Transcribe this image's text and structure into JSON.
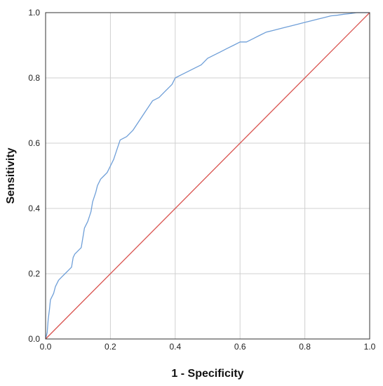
{
  "chart_data": {
    "type": "line",
    "xlabel": "1 - Specificity",
    "ylabel": "Sensitivity",
    "xlim": [
      0.0,
      1.0
    ],
    "ylim": [
      0.0,
      1.0
    ],
    "x_ticks": [
      "0.0",
      "0.2",
      "0.4",
      "0.6",
      "0.8",
      "1.0"
    ],
    "y_ticks": [
      "0.0",
      "0.2",
      "0.4",
      "0.6",
      "0.8",
      "1.0"
    ],
    "grid": true,
    "series": [
      {
        "color": "#6f9fd8",
        "points": [
          [
            0.0,
            0.0
          ],
          [
            0.005,
            0.02
          ],
          [
            0.008,
            0.06
          ],
          [
            0.012,
            0.09
          ],
          [
            0.015,
            0.12
          ],
          [
            0.025,
            0.14
          ],
          [
            0.03,
            0.16
          ],
          [
            0.04,
            0.18
          ],
          [
            0.05,
            0.19
          ],
          [
            0.06,
            0.2
          ],
          [
            0.07,
            0.21
          ],
          [
            0.08,
            0.22
          ],
          [
            0.085,
            0.25
          ],
          [
            0.09,
            0.26
          ],
          [
            0.1,
            0.27
          ],
          [
            0.11,
            0.28
          ],
          [
            0.115,
            0.31
          ],
          [
            0.12,
            0.34
          ],
          [
            0.13,
            0.36
          ],
          [
            0.14,
            0.39
          ],
          [
            0.145,
            0.42
          ],
          [
            0.155,
            0.45
          ],
          [
            0.16,
            0.47
          ],
          [
            0.17,
            0.49
          ],
          [
            0.18,
            0.5
          ],
          [
            0.19,
            0.51
          ],
          [
            0.2,
            0.53
          ],
          [
            0.21,
            0.55
          ],
          [
            0.22,
            0.58
          ],
          [
            0.23,
            0.61
          ],
          [
            0.25,
            0.62
          ],
          [
            0.27,
            0.64
          ],
          [
            0.29,
            0.67
          ],
          [
            0.31,
            0.7
          ],
          [
            0.33,
            0.73
          ],
          [
            0.35,
            0.74
          ],
          [
            0.37,
            0.76
          ],
          [
            0.39,
            0.78
          ],
          [
            0.4,
            0.8
          ],
          [
            0.42,
            0.81
          ],
          [
            0.44,
            0.82
          ],
          [
            0.46,
            0.83
          ],
          [
            0.48,
            0.84
          ],
          [
            0.5,
            0.86
          ],
          [
            0.52,
            0.87
          ],
          [
            0.54,
            0.88
          ],
          [
            0.56,
            0.89
          ],
          [
            0.58,
            0.9
          ],
          [
            0.6,
            0.91
          ],
          [
            0.62,
            0.91
          ],
          [
            0.64,
            0.92
          ],
          [
            0.66,
            0.93
          ],
          [
            0.68,
            0.94
          ],
          [
            0.7,
            0.945
          ],
          [
            0.72,
            0.95
          ],
          [
            0.74,
            0.955
          ],
          [
            0.76,
            0.96
          ],
          [
            0.78,
            0.965
          ],
          [
            0.8,
            0.97
          ],
          [
            0.82,
            0.975
          ],
          [
            0.84,
            0.98
          ],
          [
            0.86,
            0.985
          ],
          [
            0.88,
            0.99
          ],
          [
            0.9,
            0.992
          ],
          [
            0.92,
            0.995
          ],
          [
            0.94,
            0.997
          ],
          [
            0.96,
            1.0
          ],
          [
            1.0,
            1.0
          ]
        ]
      },
      {
        "color": "#d9534f",
        "points": [
          [
            0.0,
            0.0
          ],
          [
            1.0,
            1.0
          ]
        ]
      }
    ]
  }
}
